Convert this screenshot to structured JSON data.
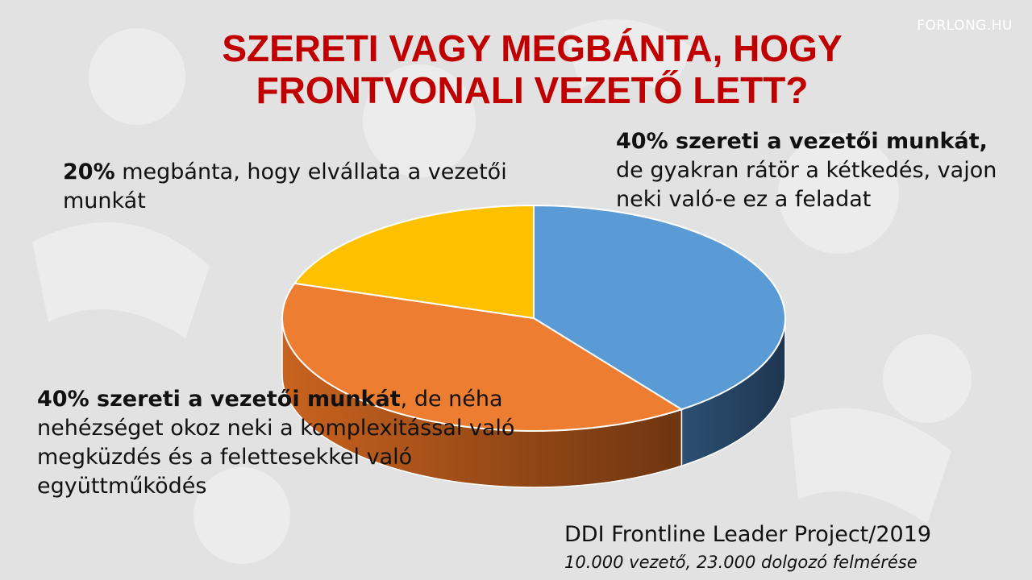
{
  "brand": "FORLONG.HU",
  "title": {
    "line1": "SZERETI VAGY MEGBÁNTA, HOGY",
    "line2": "FRONTVONALI VEZETŐ LETT?"
  },
  "chart_data": {
    "type": "pie",
    "style": "3d",
    "title": "SZERETI VAGY MEGBÁNTA, HOGY FRONTVONALI VEZETŐ LETT?",
    "slices": [
      {
        "key": "blue",
        "value": 40,
        "color": "#5b9bd5",
        "side_color": "#254361",
        "label_bold": "40% szereti a vezetői munkát,",
        "label_rest": " de gyakran rátör a kétkedés, vajon neki való-e ez a feladat"
      },
      {
        "key": "orange",
        "value": 40,
        "color": "#ed7d31",
        "side_color": "#8a4512",
        "label_bold": "40% szereti a vezetői munkát",
        "label_rest": ", de néha nehézséget okoz neki a komplexitással való megküzdés és a felettesekkel való együttműködés"
      },
      {
        "key": "yellow",
        "value": 20,
        "color": "#ffc000",
        "side_color": "#9a7300",
        "label_bold": "20%",
        "label_rest": " megbánta, hogy elvállata a vezetői munkát"
      }
    ]
  },
  "source": {
    "title": "DDI Frontline Leader Project/2019",
    "subtitle": "10.000 vezető, 23.000 dolgozó felmérése"
  }
}
